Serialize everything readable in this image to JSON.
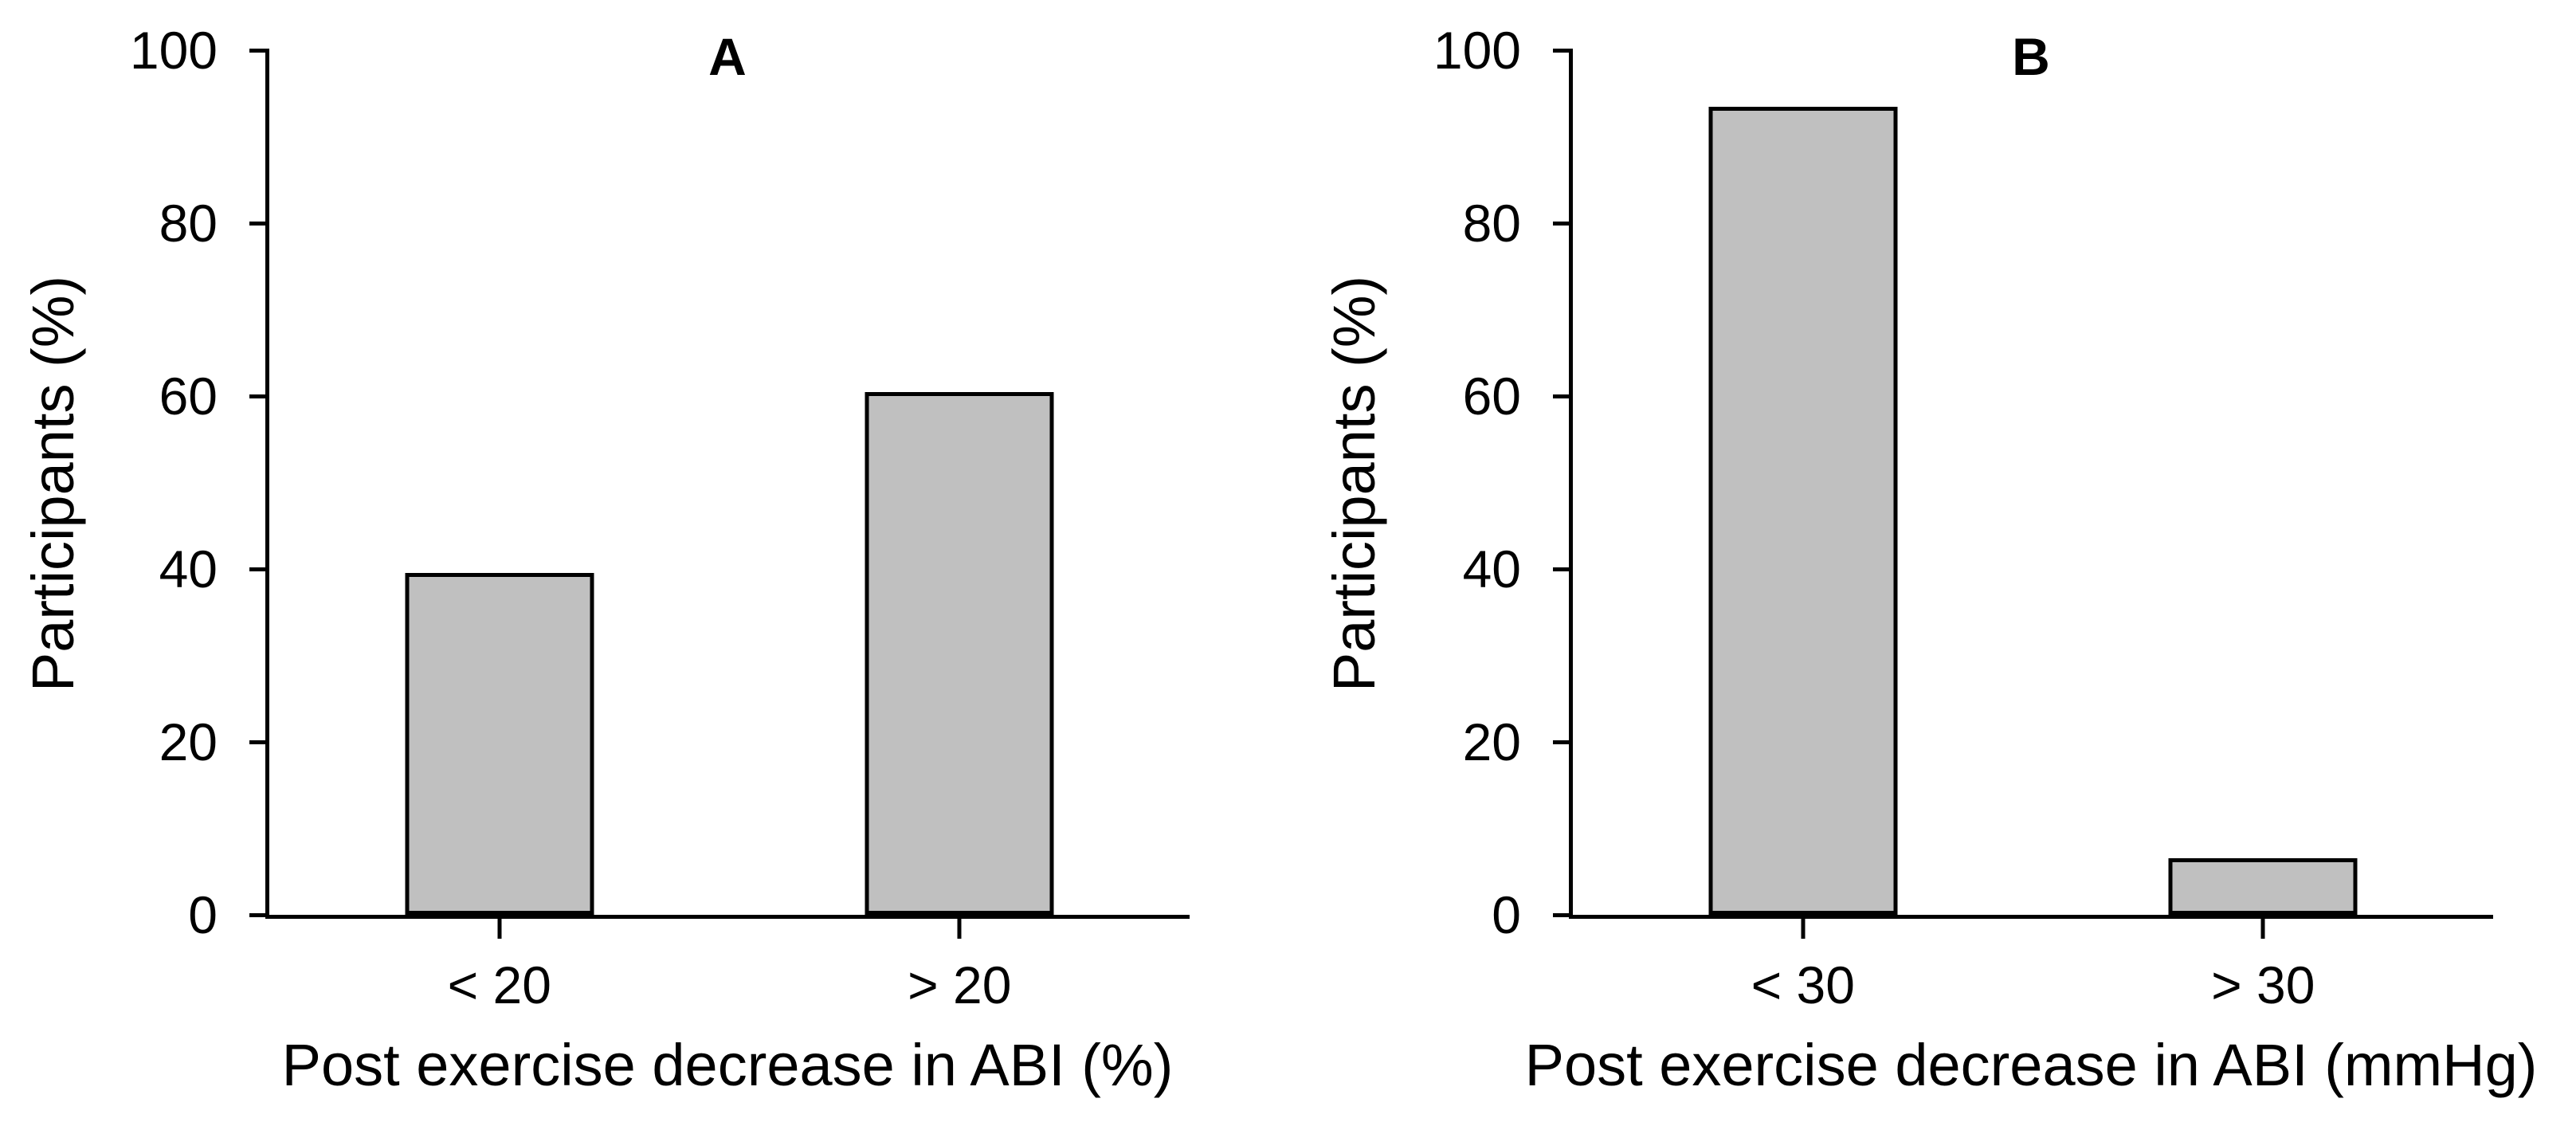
{
  "figure": {
    "background": "#ffffff",
    "bar_fill": "#c0c0c0",
    "bar_stroke": "#000000",
    "axis_color": "#000000",
    "text_color": "#000000"
  },
  "chart_data": [
    {
      "type": "bar",
      "panel_label": "A",
      "categories": [
        "< 20",
        "> 20"
      ],
      "values": [
        39.5,
        60.5
      ],
      "title": "",
      "xlabel": "Post exercise decrease in ABI (%)",
      "ylabel": "Participants (%)",
      "ylim": [
        0,
        100
      ],
      "yticks": [
        0,
        20,
        40,
        60,
        80,
        100
      ],
      "grid": false,
      "legend": "none"
    },
    {
      "type": "bar",
      "panel_label": "B",
      "categories": [
        "< 30",
        "> 30"
      ],
      "values": [
        93.5,
        6.5
      ],
      "title": "",
      "xlabel": "Post exercise decrease in ABI (mmHg)",
      "ylabel": "Participants (%)",
      "ylim": [
        0,
        100
      ],
      "yticks": [
        0,
        20,
        40,
        60,
        80,
        100
      ],
      "grid": false,
      "legend": "none"
    }
  ]
}
